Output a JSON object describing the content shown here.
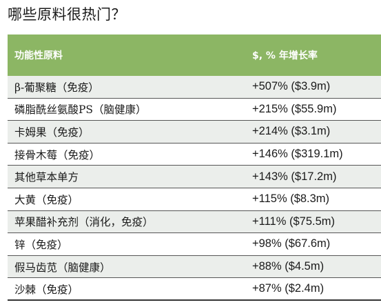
{
  "title": "哪些原料很热门？",
  "table": {
    "headers": [
      "功能性原料",
      "$, % 年增长率"
    ],
    "rows": [
      [
        "β-葡聚糖（免疫）",
        "+507% ($3.9m)"
      ],
      [
        "磷脂酰丝氨酸PS（脑健康）",
        "+215% ($55.9m)"
      ],
      [
        "卡姆果（免疫）",
        "+214% ($3.1m)"
      ],
      [
        "接骨木莓（免疫）",
        "+146% ($319.1m)"
      ],
      [
        "其他草本单方",
        "+143% ($17.2m)"
      ],
      [
        "大黄（免疫）",
        "+115% ($8.3m)"
      ],
      [
        "苹果醋补充剂（消化，免疫）",
        "+111% ($75.5m)"
      ],
      [
        "锌（免疫）",
        "+98% ($67.6m)"
      ],
      [
        "假马齿苋（脑健康）",
        "+88% ($4.5m)"
      ],
      [
        "沙棘（免疫）",
        "+87% ($2.4m)"
      ]
    ]
  },
  "colors": {
    "header_bg": "#8cb664",
    "header_text": "#ffffff",
    "alt_row_bg": "#ebeeeb",
    "rule": "#555555"
  }
}
